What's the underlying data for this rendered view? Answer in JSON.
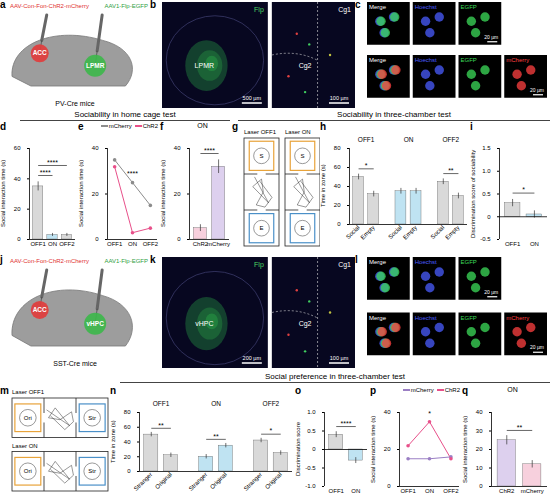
{
  "section_titles": [
    "Sociability in home cage test",
    "Sociability in three-chamber test",
    "Social preference in three-chamber test"
  ],
  "chart_data": [
    {
      "panel": "d",
      "type": "bar",
      "categories": [
        "OFF1",
        "ON",
        "OFF2"
      ],
      "values": [
        35,
        3,
        3
      ],
      "errors": [
        3,
        1,
        1
      ],
      "colors": [
        "#d9d9d9",
        "#bfe3f2",
        "#d9d9d9"
      ],
      "y_label": "Social interaction time (s)",
      "ylim": [
        0,
        60
      ],
      "yticks": [
        0,
        20,
        40,
        60
      ],
      "annotations": [
        {
          "text": "****",
          "from": "OFF1",
          "to": "ON"
        },
        {
          "text": "****",
          "from": "OFF1",
          "to": "OFF2"
        }
      ]
    },
    {
      "panel": "e",
      "type": "line",
      "categories": [
        "OFF1",
        "ON",
        "OFF2"
      ],
      "series": [
        {
          "name": "mCherry",
          "color": "#8c8c8c",
          "marker": "circle",
          "values": [
            35,
            25,
            15
          ]
        },
        {
          "name": "ChR2",
          "color": "#e8508a",
          "marker": "circle",
          "values": [
            32,
            3,
            5
          ]
        }
      ],
      "y_label": "Social interaction time (s)",
      "ylim": [
        0,
        40
      ],
      "yticks": [
        0,
        20,
        40
      ],
      "annotations": [
        {
          "text": "****",
          "at": "ON"
        }
      ]
    },
    {
      "panel": "f",
      "type": "bar",
      "title": "ON",
      "categories": [
        "ChR2",
        "mCherry"
      ],
      "values": [
        5,
        32
      ],
      "errors": [
        1.5,
        3
      ],
      "colors": [
        "#f7d0dd",
        "#ddd0ee"
      ],
      "y_label": "Social interaction time (s)",
      "ylim": [
        0,
        40
      ],
      "yticks": [
        0,
        20,
        40
      ],
      "annotations": [
        {
          "text": "****",
          "from": "ChR2",
          "to": "mCherry"
        }
      ]
    },
    {
      "panel": "h",
      "type": "bar",
      "categories": [
        "Social",
        "Empty"
      ],
      "groups": [
        {
          "name": "OFF1",
          "values": [
            50,
            32
          ],
          "errors": [
            3,
            3
          ],
          "color": "#d9d9d9",
          "annotation": "*"
        },
        {
          "name": "ON",
          "values": [
            35,
            35
          ],
          "errors": [
            3,
            3
          ],
          "color": "#bfe3f2"
        },
        {
          "name": "OFF2",
          "values": [
            45,
            30
          ],
          "errors": [
            3,
            3
          ],
          "color": "#d9d9d9",
          "annotation": "**"
        }
      ],
      "y_label": "Time in zone (s)",
      "ylim": [
        0,
        80
      ],
      "yticks": [
        0,
        20,
        40,
        60,
        80
      ]
    },
    {
      "panel": "i",
      "type": "bar",
      "categories": [
        "OFF1",
        "ON"
      ],
      "values": [
        0.3,
        0.05
      ],
      "errors": [
        0.08,
        0.08
      ],
      "colors": [
        "#d9d9d9",
        "#bfe3f2"
      ],
      "y_label": "Discrimination score of sociability",
      "ylim": [
        -0.5,
        1.5
      ],
      "yticks": [
        -0.5,
        0,
        0.5,
        {
          "value": 1,
          "label": "1.0"
        },
        1.5
      ],
      "annotations": [
        {
          "text": "*",
          "from": "OFF1",
          "to": "ON"
        }
      ]
    },
    {
      "panel": "n",
      "type": "bar",
      "categories": [
        "Stranger",
        "Original"
      ],
      "groups": [
        {
          "name": "OFF1",
          "values": [
            50,
            22
          ],
          "errors": [
            3,
            3
          ],
          "color": "#d9d9d9",
          "annotation": "**"
        },
        {
          "name": "ON",
          "values": [
            20,
            35
          ],
          "errors": [
            3,
            3
          ],
          "color": "#bfe3f2",
          "annotation": "**"
        },
        {
          "name": "OFF2",
          "values": [
            42,
            25
          ],
          "errors": [
            3,
            3
          ],
          "color": "#d9d9d9",
          "annotation": "*"
        }
      ],
      "y_label": "Time in zone (s)",
      "ylim": [
        0,
        80
      ],
      "yticks": [
        0,
        20,
        40,
        60,
        80
      ]
    },
    {
      "panel": "o",
      "type": "bar",
      "categories": [
        "OFF1",
        "ON"
      ],
      "values": [
        0.4,
        -0.3
      ],
      "errors": [
        0.08,
        0.08
      ],
      "colors": [
        "#d9d9d9",
        "#bfe3f2"
      ],
      "y_label": "Discrimination score",
      "ylim": [
        -1,
        1
      ],
      "yticks": [
        {
          "value": -1,
          "label": "-1.0"
        },
        -0.5,
        0,
        0.5,
        {
          "value": 1,
          "label": "1.0"
        }
      ],
      "annotations": [
        {
          "text": "****",
          "from": "OFF1",
          "to": "ON"
        }
      ]
    },
    {
      "panel": "p",
      "type": "line",
      "categories": [
        "OFF1",
        "ON",
        "OFF2"
      ],
      "series": [
        {
          "name": "mCherry",
          "color": "#9b7fc4",
          "marker": "circle",
          "values": [
            15,
            15,
            16
          ]
        },
        {
          "name": "ChR2",
          "color": "#e8508a",
          "marker": "circle",
          "values": [
            22,
            35,
            15
          ]
        }
      ],
      "y_label": "Social interaction time (s)",
      "ylim": [
        0,
        40
      ],
      "yticks": [
        0,
        20,
        40
      ],
      "annotations": [
        {
          "text": "*",
          "at": "ON"
        }
      ]
    },
    {
      "panel": "q",
      "type": "bar",
      "title": "ON",
      "categories": [
        "ChR2",
        "mCherry"
      ],
      "values": [
        25,
        12
      ],
      "errors": [
        2.5,
        2
      ],
      "colors": [
        "#ddd0ee",
        "#f7d0dd"
      ],
      "y_label": "Social interaction time (s)",
      "ylim": [
        0,
        40
      ],
      "yticks": [
        0,
        10,
        20,
        30,
        40
      ],
      "annotations": [
        {
          "text": "**",
          "from": "ChR2",
          "to": "mCherry"
        }
      ]
    }
  ],
  "diagrams": [
    {
      "panel": "a",
      "type": "schematic",
      "viruses": [
        {
          "text": "AAV-Con-Fon-ChR2-mCherry",
          "color": "#e0302f"
        },
        {
          "text": "AAV1-Flp-EGFP",
          "color": "#2ea043"
        }
      ],
      "regions": [
        {
          "text": "ACC",
          "color": "#e23b3b"
        },
        {
          "text": "LPMR",
          "color": "#3cb84a"
        }
      ],
      "mouse": "PV-Cre mice"
    },
    {
      "panel": "b",
      "type": "micrograph",
      "images": [
        {
          "labels": [
            {
              "text": "Flp",
              "color": "#4cd964"
            },
            {
              "text": "LPMR",
              "color": "#ffffff"
            }
          ],
          "scale_bar": "500 µm"
        },
        {
          "labels": [
            {
              "text": "Cg1",
              "color": "#ffffff"
            },
            {
              "text": "Cg2",
              "color": "#ffffff"
            }
          ],
          "scale_bar": "100 µm"
        }
      ]
    },
    {
      "panel": "c",
      "type": "micrograph_grid",
      "rows": [
        {
          "channels": [
            {
              "text": "Merge",
              "color": "#ffffff"
            },
            {
              "text": "Hoechst",
              "color": "#4a5cff"
            },
            {
              "text": "EGFP",
              "color": "#3cdc5a"
            }
          ],
          "scale_bar": "20 µm"
        },
        {
          "channels": [
            {
              "text": "Merge",
              "color": "#ffffff"
            },
            {
              "text": "Hoechst",
              "color": "#4a5cff"
            },
            {
              "text": "EGFP",
              "color": "#3cdc5a"
            },
            {
              "text": "mCherry",
              "color": "#ff4040"
            }
          ],
          "scale_bar": "20 µm"
        }
      ]
    },
    {
      "panel": "g",
      "type": "trajectory",
      "views": [
        {
          "label": "Laser OFF1",
          "zones": [
            {
              "text": "S",
              "color": "#e8a33a"
            },
            {
              "text": "E",
              "color": "#4a90c8"
            }
          ]
        },
        {
          "label": "Laser ON",
          "zones": [
            {
              "text": "S",
              "color": "#e8a33a"
            },
            {
              "text": "E",
              "color": "#4a90c8"
            }
          ]
        }
      ]
    },
    {
      "panel": "j",
      "type": "schematic",
      "viruses": [
        {
          "text": "AAV-Con-Fon-ChR2-mCherry",
          "color": "#e0302f"
        },
        {
          "text": "AAV1-Flp-EGFP",
          "color": "#2ea043"
        }
      ],
      "regions": [
        {
          "text": "ACC",
          "color": "#e23b3b"
        },
        {
          "text": "vHPC",
          "color": "#3cb84a"
        }
      ],
      "mouse": "SST-Cre mice"
    },
    {
      "panel": "k",
      "type": "micrograph",
      "images": [
        {
          "labels": [
            {
              "text": "Flp",
              "color": "#4cd964"
            },
            {
              "text": "vHPC",
              "color": "#ffffff"
            }
          ],
          "scale_bar": "200 µm"
        },
        {
          "labels": [
            {
              "text": "Cg1",
              "color": "#ffffff"
            },
            {
              "text": "Cg2",
              "color": "#ffffff"
            }
          ],
          "scale_bar": "100 µm"
        }
      ]
    },
    {
      "panel": "l",
      "type": "micrograph_grid",
      "rows": [
        {
          "channels": [
            {
              "text": "Merge",
              "color": "#ffffff"
            },
            {
              "text": "Hoechst",
              "color": "#4a5cff"
            },
            {
              "text": "EGFP",
              "color": "#3cdc5a"
            }
          ],
          "scale_bar": "20 µm"
        },
        {
          "channels": [
            {
              "text": "Merge",
              "color": "#ffffff"
            },
            {
              "text": "Hoechst",
              "color": "#4a5cff"
            },
            {
              "text": "EGFP",
              "color": "#3cdc5a"
            },
            {
              "text": "mCherry",
              "color": "#ff4040"
            }
          ],
          "scale_bar": "20 µm"
        }
      ]
    },
    {
      "panel": "m",
      "type": "trajectory",
      "views": [
        {
          "label": "Laser OFF1",
          "zones": [
            {
              "text": "Ori",
              "color": "#e8a33a"
            },
            {
              "text": "Str",
              "color": "#4a90c8"
            }
          ]
        },
        {
          "label": "Laser ON",
          "zones": [
            {
              "text": "Ori",
              "color": "#e8a33a"
            },
            {
              "text": "Str",
              "color": "#4a90c8"
            }
          ]
        }
      ]
    }
  ]
}
